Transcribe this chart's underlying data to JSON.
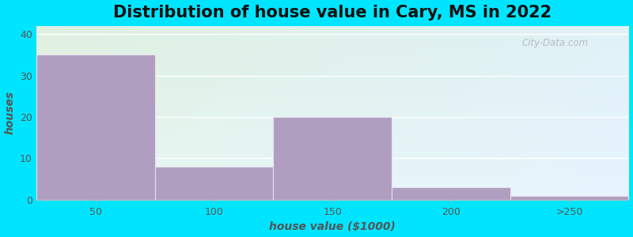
{
  "title": "Distribution of house value in Cary, MS in 2022",
  "xlabel": "house value ($1000)",
  "ylabel": "houses",
  "bar_values": [
    35,
    8,
    20,
    3,
    1
  ],
  "bar_color": "#b09ec0",
  "bar_edge_color": "#e8e0f0",
  "xtick_labels": [
    "50",
    "100",
    "150",
    "200",
    ">250"
  ],
  "yticks": [
    0,
    10,
    20,
    30,
    40
  ],
  "ylim": [
    0,
    42
  ],
  "bg_outer": "#00e5ff",
  "bg_color_topleft": "#dff0e0",
  "bg_color_topright": "#e8f4ee",
  "bg_color_bottomleft": "#eef8f5",
  "bg_color_bottomright": "#f0f8ff",
  "grid_color": "#ffffff",
  "title_fontsize": 15,
  "axis_fontsize": 10,
  "tick_fontsize": 9,
  "watermark": "City-Data.com"
}
